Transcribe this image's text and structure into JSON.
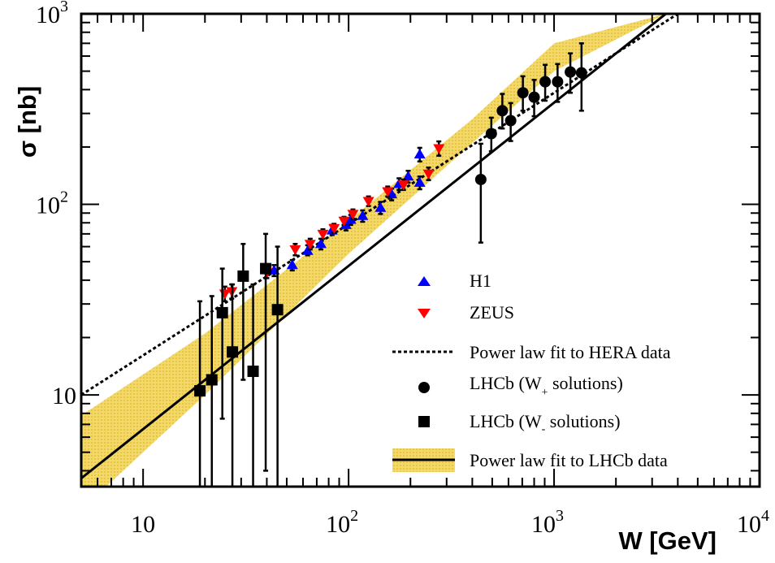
{
  "chart_data": {
    "type": "scatter",
    "title": "",
    "xlabel": "W [GeV]",
    "ylabel": "σ [nb]",
    "xscale": "log",
    "yscale": "log",
    "xlim": [
      5,
      10000
    ],
    "ylim": [
      3.3,
      1000
    ],
    "x_ticks": [
      {
        "value": 10,
        "base": "10",
        "exp": ""
      },
      {
        "value": 100,
        "base": "10",
        "exp": "2"
      },
      {
        "value": 1000,
        "base": "10",
        "exp": "3"
      },
      {
        "value": 10000,
        "base": "10",
        "exp": "4"
      }
    ],
    "y_ticks": [
      {
        "value": 10,
        "base": "10",
        "exp": ""
      },
      {
        "value": 100,
        "base": "10",
        "exp": "2"
      },
      {
        "value": 1000,
        "base": "10",
        "exp": "3"
      }
    ],
    "legend_position": "bottom-right",
    "series": [
      {
        "name": "H1",
        "marker": "triangle-up",
        "color": "#0000ff",
        "points": [
          {
            "x": 43.4,
            "y": 45,
            "lo": 42,
            "hi": 48
          },
          {
            "x": 53.2,
            "y": 48,
            "lo": 45,
            "hi": 51
          },
          {
            "x": 63.2,
            "y": 57,
            "lo": 54,
            "hi": 61
          },
          {
            "x": 73.3,
            "y": 62,
            "lo": 58,
            "hi": 66
          },
          {
            "x": 83.1,
            "y": 73,
            "lo": 69,
            "hi": 78
          },
          {
            "x": 97.1,
            "y": 78,
            "lo": 73,
            "hi": 83
          },
          {
            "x": 102.4,
            "y": 83,
            "lo": 78,
            "hi": 88
          },
          {
            "x": 117,
            "y": 87,
            "lo": 81,
            "hi": 93
          },
          {
            "x": 143,
            "y": 96,
            "lo": 89,
            "hi": 103
          },
          {
            "x": 162,
            "y": 113,
            "lo": 105,
            "hi": 121
          },
          {
            "x": 176,
            "y": 128,
            "lo": 119,
            "hi": 137
          },
          {
            "x": 195,
            "y": 140,
            "lo": 130,
            "hi": 150
          },
          {
            "x": 222,
            "y": 130,
            "lo": 120,
            "hi": 140
          },
          {
            "x": 222,
            "y": 183,
            "lo": 168,
            "hi": 198
          }
        ]
      },
      {
        "name": "ZEUS",
        "marker": "triangle-down",
        "color": "#ff0000",
        "points": [
          {
            "x": 25,
            "y": 34,
            "lo": 31,
            "hi": 37
          },
          {
            "x": 27,
            "y": 35,
            "lo": 32,
            "hi": 38
          },
          {
            "x": 40,
            "y": 44,
            "lo": 41,
            "hi": 47
          },
          {
            "x": 55,
            "y": 58,
            "lo": 54,
            "hi": 62
          },
          {
            "x": 65,
            "y": 62,
            "lo": 58,
            "hi": 66
          },
          {
            "x": 75,
            "y": 70,
            "lo": 66,
            "hi": 74
          },
          {
            "x": 85,
            "y": 75,
            "lo": 71,
            "hi": 79
          },
          {
            "x": 95,
            "y": 82,
            "lo": 78,
            "hi": 86
          },
          {
            "x": 105,
            "y": 89,
            "lo": 84,
            "hi": 94
          },
          {
            "x": 125,
            "y": 104,
            "lo": 98,
            "hi": 110
          },
          {
            "x": 155,
            "y": 117,
            "lo": 110,
            "hi": 124
          },
          {
            "x": 185,
            "y": 127,
            "lo": 119,
            "hi": 135
          },
          {
            "x": 245,
            "y": 145,
            "lo": 134,
            "hi": 156
          },
          {
            "x": 275,
            "y": 197,
            "lo": 180,
            "hi": 214
          }
        ]
      },
      {
        "name": "LHCb (W+ solutions)",
        "marker": "circle",
        "color": "#000000",
        "points": [
          {
            "x": 440,
            "y": 135,
            "lo": 63,
            "hi": 208
          },
          {
            "x": 495,
            "y": 235,
            "lo": 190,
            "hi": 285
          },
          {
            "x": 560,
            "y": 310,
            "lo": 250,
            "hi": 380
          },
          {
            "x": 615,
            "y": 275,
            "lo": 215,
            "hi": 340
          },
          {
            "x": 705,
            "y": 385,
            "lo": 310,
            "hi": 470
          },
          {
            "x": 800,
            "y": 365,
            "lo": 290,
            "hi": 450
          },
          {
            "x": 905,
            "y": 440,
            "lo": 350,
            "hi": 540
          },
          {
            "x": 1040,
            "y": 440,
            "lo": 345,
            "hi": 545
          },
          {
            "x": 1200,
            "y": 495,
            "lo": 385,
            "hi": 620
          },
          {
            "x": 1360,
            "y": 490,
            "lo": 310,
            "hi": 700
          }
        ]
      },
      {
        "name": "LHCb (W- solutions)",
        "marker": "square",
        "color": "#000000",
        "points": [
          {
            "x": 18.9,
            "y": 10.5,
            "lo": 3.3,
            "hi": 31
          },
          {
            "x": 21.6,
            "y": 12,
            "lo": 3.3,
            "hi": 33
          },
          {
            "x": 24.3,
            "y": 27,
            "lo": 7.5,
            "hi": 46
          },
          {
            "x": 27.2,
            "y": 16.8,
            "lo": 3.3,
            "hi": 38
          },
          {
            "x": 30.7,
            "y": 42,
            "lo": 12,
            "hi": 62
          },
          {
            "x": 34.3,
            "y": 13.3,
            "lo": 3.3,
            "hi": 38
          },
          {
            "x": 39.5,
            "y": 46,
            "lo": 4,
            "hi": 70
          },
          {
            "x": 45.1,
            "y": 28,
            "lo": 3.3,
            "hi": 60
          }
        ]
      }
    ],
    "fits": [
      {
        "name": "Power law fit to HERA data",
        "style": "dotted",
        "x": [
          5,
          4000
        ],
        "y": [
          10,
          1000
        ]
      },
      {
        "name": "Power law fit to LHCb data",
        "style": "solid",
        "x": [
          5,
          3500
        ],
        "y": [
          3.65,
          1000
        ],
        "band": [
          {
            "x": 5,
            "lo": 2.5,
            "hi": 7.8
          },
          {
            "x": 20,
            "lo": 10,
            "hi": 21
          },
          {
            "x": 100,
            "lo": 55,
            "hi": 82
          },
          {
            "x": 400,
            "lo": 210,
            "hi": 280
          },
          {
            "x": 1000,
            "lo": 500,
            "hi": 700
          },
          {
            "x": 3500,
            "lo": 1000,
            "hi": 1000
          }
        ]
      }
    ],
    "band_color": "#f0d35a"
  },
  "legend": {
    "h1": "H1",
    "zeus": "ZEUS",
    "hera_fit": "Power law fit to HERA data",
    "lhcb_plus_prefix": "LHCb (W",
    "lhcb_plus_sub": "+",
    "lhcb_plus_suffix": " solutions)",
    "lhcb_minus_prefix": "LHCb (W",
    "lhcb_minus_sub": "-",
    "lhcb_minus_suffix": " solutions)",
    "lhcb_fit": "Power law fit to LHCb data"
  }
}
